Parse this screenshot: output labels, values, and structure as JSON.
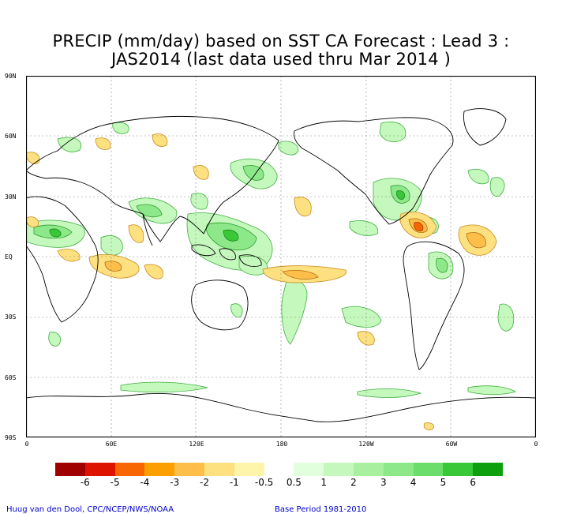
{
  "title_line1": "PRECIP (mm/day) based on SST CA Forecast : Lead 3 :",
  "title_line2": "JAS2014 (last data used thru Mar 2014 )",
  "lat_labels": [
    "90N",
    "60N",
    "30N",
    "EQ",
    "30S",
    "60S",
    "90S"
  ],
  "lon_labels": [
    "0",
    "60E",
    "120E",
    "180",
    "120W",
    "60W",
    "0"
  ],
  "colorbar": {
    "colors": [
      "#a00000",
      "#dd1500",
      "#f76600",
      "#fba000",
      "#fdbe4a",
      "#fde180",
      "#fff5aa",
      "#ffffff",
      "#e2ffdd",
      "#c5f8bd",
      "#a9efa0",
      "#8de88a",
      "#6bdd6b",
      "#38c838",
      "#0d9f0d"
    ],
    "labels": [
      "-6",
      "-5",
      "-4",
      "-3",
      "-2",
      "-1",
      "-0.5",
      "0.5",
      "1",
      "2",
      "3",
      "4",
      "5",
      "6"
    ]
  },
  "credit_left": "Huug van den Dool, CPC/NCEP/NWS/NOAA",
  "credit_right": "Base Period 1981-2010",
  "legend_colors": {
    "dry_light": "#fde180",
    "dry_mid": "#fdbe4a",
    "dry_strong": "#f76600",
    "wet_light": "#c5f8bd",
    "wet_mid": "#8de88a",
    "wet_strong": "#38c838"
  }
}
